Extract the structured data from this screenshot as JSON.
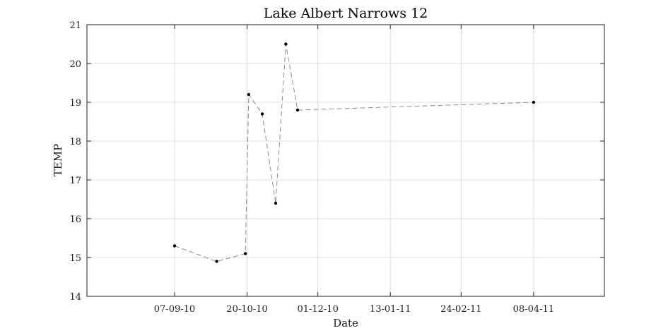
{
  "chart_data": {
    "type": "line",
    "title": "Lake Albert Narrows 12",
    "xlabel": "Date",
    "ylabel": "TEMP",
    "x_axis_type": "date",
    "xlim": [
      "2010-07-17",
      "2011-05-20"
    ],
    "ylim": [
      14,
      21
    ],
    "x_ticks": [
      {
        "date": "2010-09-07",
        "label": "07-09-10"
      },
      {
        "date": "2010-10-20",
        "label": "20-10-10"
      },
      {
        "date": "2010-12-01",
        "label": "01-12-10"
      },
      {
        "date": "2011-01-13",
        "label": "13-01-11"
      },
      {
        "date": "2011-02-24",
        "label": "24-02-11"
      },
      {
        "date": "2011-04-08",
        "label": "08-04-11"
      }
    ],
    "y_ticks": [
      14,
      15,
      16,
      17,
      18,
      19,
      20,
      21
    ],
    "grid": true,
    "line_style": "dashed",
    "line_color": "#8c8c8c",
    "marker_color": "#000000",
    "series": [
      {
        "x": [
          "2010-09-07",
          "2010-10-02",
          "2010-10-19",
          "2010-10-21",
          "2010-10-29",
          "2010-11-06",
          "2010-11-12",
          "2010-11-19",
          "2011-04-08"
        ],
        "y": [
          15.3,
          14.9,
          15.1,
          19.2,
          18.7,
          16.4,
          20.5,
          18.8,
          19.0
        ]
      }
    ]
  }
}
